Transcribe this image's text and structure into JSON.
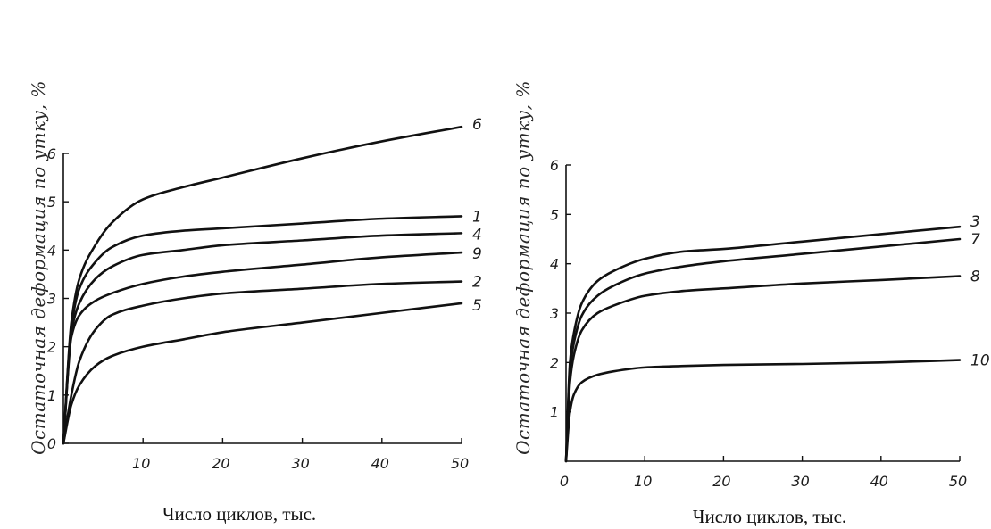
{
  "chart_data": [
    {
      "type": "line",
      "title": "",
      "xlabel": "Число циклов, тыс.",
      "ylabel": "Остаточная деформация по утку, %",
      "xlim": [
        0,
        50
      ],
      "ylim": [
        0,
        6
      ],
      "xticks": [
        10,
        20,
        30,
        40,
        50
      ],
      "yticks": [
        0,
        1,
        2,
        3,
        4,
        5,
        6
      ],
      "xtick_labels": [
        "10",
        "20",
        "30",
        "40",
        "50"
      ],
      "ytick_labels": [
        "0",
        "1",
        "2",
        "3",
        "4",
        "5",
        "6"
      ],
      "grid": false,
      "series": [
        {
          "name": "6",
          "x": [
            0,
            1,
            2,
            4,
            6,
            10,
            15,
            20,
            30,
            40,
            50
          ],
          "y": [
            0,
            2.5,
            3.4,
            4.1,
            4.55,
            5.05,
            5.3,
            5.5,
            5.9,
            6.25,
            6.55
          ]
        },
        {
          "name": "1",
          "x": [
            0,
            1,
            2,
            4,
            6,
            10,
            15,
            20,
            30,
            40,
            50
          ],
          "y": [
            0,
            2.4,
            3.2,
            3.75,
            4.05,
            4.3,
            4.4,
            4.45,
            4.55,
            4.65,
            4.7
          ]
        },
        {
          "name": "4",
          "x": [
            0,
            1,
            2,
            4,
            6,
            10,
            15,
            20,
            30,
            40,
            50
          ],
          "y": [
            0,
            2.3,
            2.9,
            3.4,
            3.65,
            3.9,
            4.0,
            4.1,
            4.2,
            4.3,
            4.35
          ]
        },
        {
          "name": "9",
          "x": [
            0,
            1,
            2,
            4,
            6,
            10,
            15,
            20,
            30,
            40,
            50
          ],
          "y": [
            0,
            2.2,
            2.65,
            2.95,
            3.1,
            3.3,
            3.45,
            3.55,
            3.7,
            3.85,
            3.95
          ]
        },
        {
          "name": "2",
          "x": [
            0,
            1,
            2,
            4,
            6,
            10,
            15,
            20,
            30,
            40,
            50
          ],
          "y": [
            0,
            1.0,
            1.7,
            2.35,
            2.65,
            2.85,
            3.0,
            3.1,
            3.2,
            3.3,
            3.35
          ]
        },
        {
          "name": "5",
          "x": [
            0,
            1,
            2,
            4,
            6,
            10,
            15,
            20,
            30,
            40,
            50
          ],
          "y": [
            0,
            0.8,
            1.2,
            1.6,
            1.8,
            2.0,
            2.15,
            2.3,
            2.5,
            2.7,
            2.9
          ]
        }
      ]
    },
    {
      "type": "line",
      "title": "",
      "xlabel": "Число циклов, тыс.",
      "ylabel": "Остаточная деформация по утку, %",
      "xlim": [
        0,
        50
      ],
      "ylim": [
        0,
        6
      ],
      "xticks": [
        0,
        10,
        20,
        30,
        40,
        50
      ],
      "yticks": [
        1,
        2,
        3,
        4,
        5,
        6
      ],
      "xtick_labels": [
        "0",
        "10",
        "20",
        "30",
        "40",
        "50"
      ],
      "ytick_labels": [
        "1",
        "2",
        "3",
        "4",
        "5",
        "6"
      ],
      "grid": false,
      "series": [
        {
          "name": "3",
          "x": [
            0,
            0.5,
            1,
            2,
            4,
            6,
            10,
            15,
            20,
            30,
            40,
            50
          ],
          "y": [
            0,
            2.0,
            2.6,
            3.2,
            3.65,
            3.85,
            4.1,
            4.25,
            4.3,
            4.45,
            4.6,
            4.75
          ]
        },
        {
          "name": "7",
          "x": [
            0,
            0.5,
            1,
            2,
            4,
            6,
            10,
            15,
            20,
            30,
            40,
            50
          ],
          "y": [
            0,
            1.85,
            2.4,
            2.95,
            3.35,
            3.55,
            3.8,
            3.95,
            4.05,
            4.2,
            4.35,
            4.5
          ]
        },
        {
          "name": "8",
          "x": [
            0,
            0.5,
            1,
            2,
            4,
            6,
            10,
            15,
            20,
            30,
            40,
            50
          ],
          "y": [
            0,
            1.6,
            2.15,
            2.65,
            3.0,
            3.15,
            3.35,
            3.45,
            3.5,
            3.6,
            3.67,
            3.75
          ]
        },
        {
          "name": "10",
          "x": [
            0,
            0.5,
            1,
            2,
            4,
            6,
            10,
            15,
            20,
            30,
            40,
            50
          ],
          "y": [
            0,
            1.0,
            1.35,
            1.6,
            1.75,
            1.82,
            1.9,
            1.93,
            1.95,
            1.97,
            2.0,
            2.05
          ]
        }
      ]
    }
  ]
}
